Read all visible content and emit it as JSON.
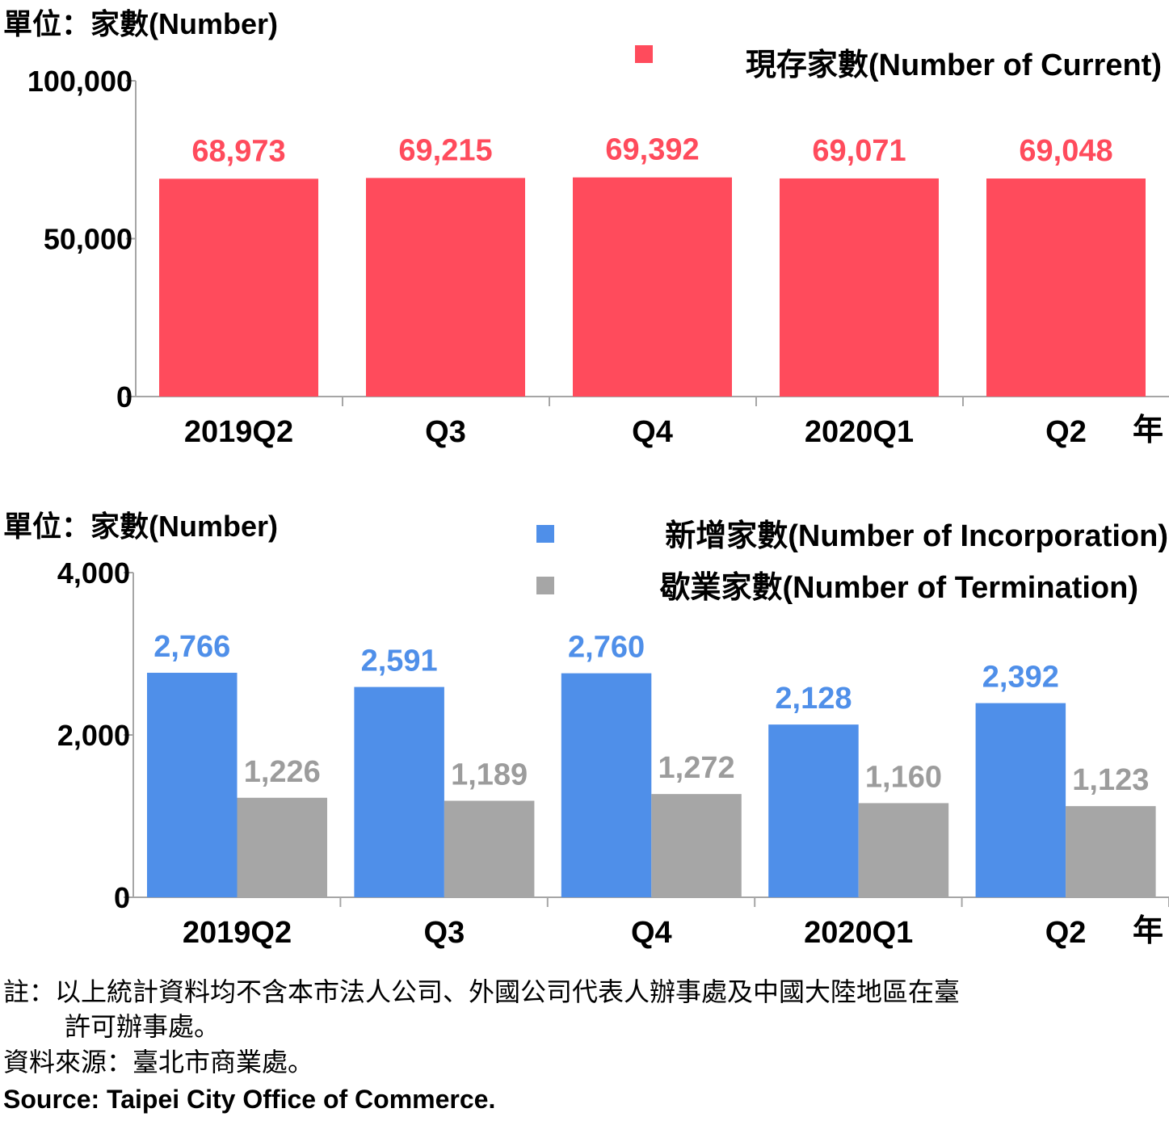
{
  "chart_data": [
    {
      "type": "bar",
      "unit_label": "單位：家數(Number)",
      "categories": [
        "2019Q2",
        "Q3",
        "Q4",
        "2020Q1",
        "Q2"
      ],
      "x_suffix": "年",
      "ylim": [
        0,
        100000
      ],
      "yticks": [
        "0",
        "50,000",
        "100,000"
      ],
      "ytick_values": [
        0,
        50000,
        100000
      ],
      "legend_position": "top-right",
      "series": [
        {
          "name": "現存家數(Number of Current)",
          "color": "#ff4b5c",
          "values": [
            68973,
            69215,
            69392,
            69071,
            69048
          ],
          "labels": [
            "68,973",
            "69,215",
            "69,392",
            "69,071",
            "69,048"
          ]
        }
      ]
    },
    {
      "type": "bar",
      "unit_label": "單位：家數(Number)",
      "categories": [
        "2019Q2",
        "Q3",
        "Q4",
        "2020Q1",
        "Q2"
      ],
      "x_suffix": "年",
      "ylim": [
        0,
        4000
      ],
      "yticks": [
        "0",
        "2,000",
        "4,000"
      ],
      "ytick_values": [
        0,
        2000,
        4000
      ],
      "legend_position": "top-right",
      "series": [
        {
          "name": "新增家數(Number of Incorporation)",
          "color": "#4f8fe9",
          "label_color": "#4f8fe9",
          "values": [
            2766,
            2591,
            2760,
            2128,
            2392
          ],
          "labels": [
            "2,766",
            "2,591",
            "2,760",
            "2,128",
            "2,392"
          ]
        },
        {
          "name": "歇業家數(Number of Termination)",
          "color": "#a6a6a6",
          "label_color": "#9c9c9c",
          "values": [
            1226,
            1189,
            1272,
            1160,
            1123
          ],
          "labels": [
            "1,226",
            "1,189",
            "1,272",
            "1,160",
            "1,123"
          ]
        }
      ]
    }
  ],
  "notes": {
    "line1": "註：以上統計資料均不含本市法人公司、外國公司代表人辦事處及中國大陸地區在臺",
    "line2": "許可辦事處。",
    "source_zh": "資料來源：臺北市商業處。",
    "source_en": "Source: Taipei City Office of Commerce."
  }
}
